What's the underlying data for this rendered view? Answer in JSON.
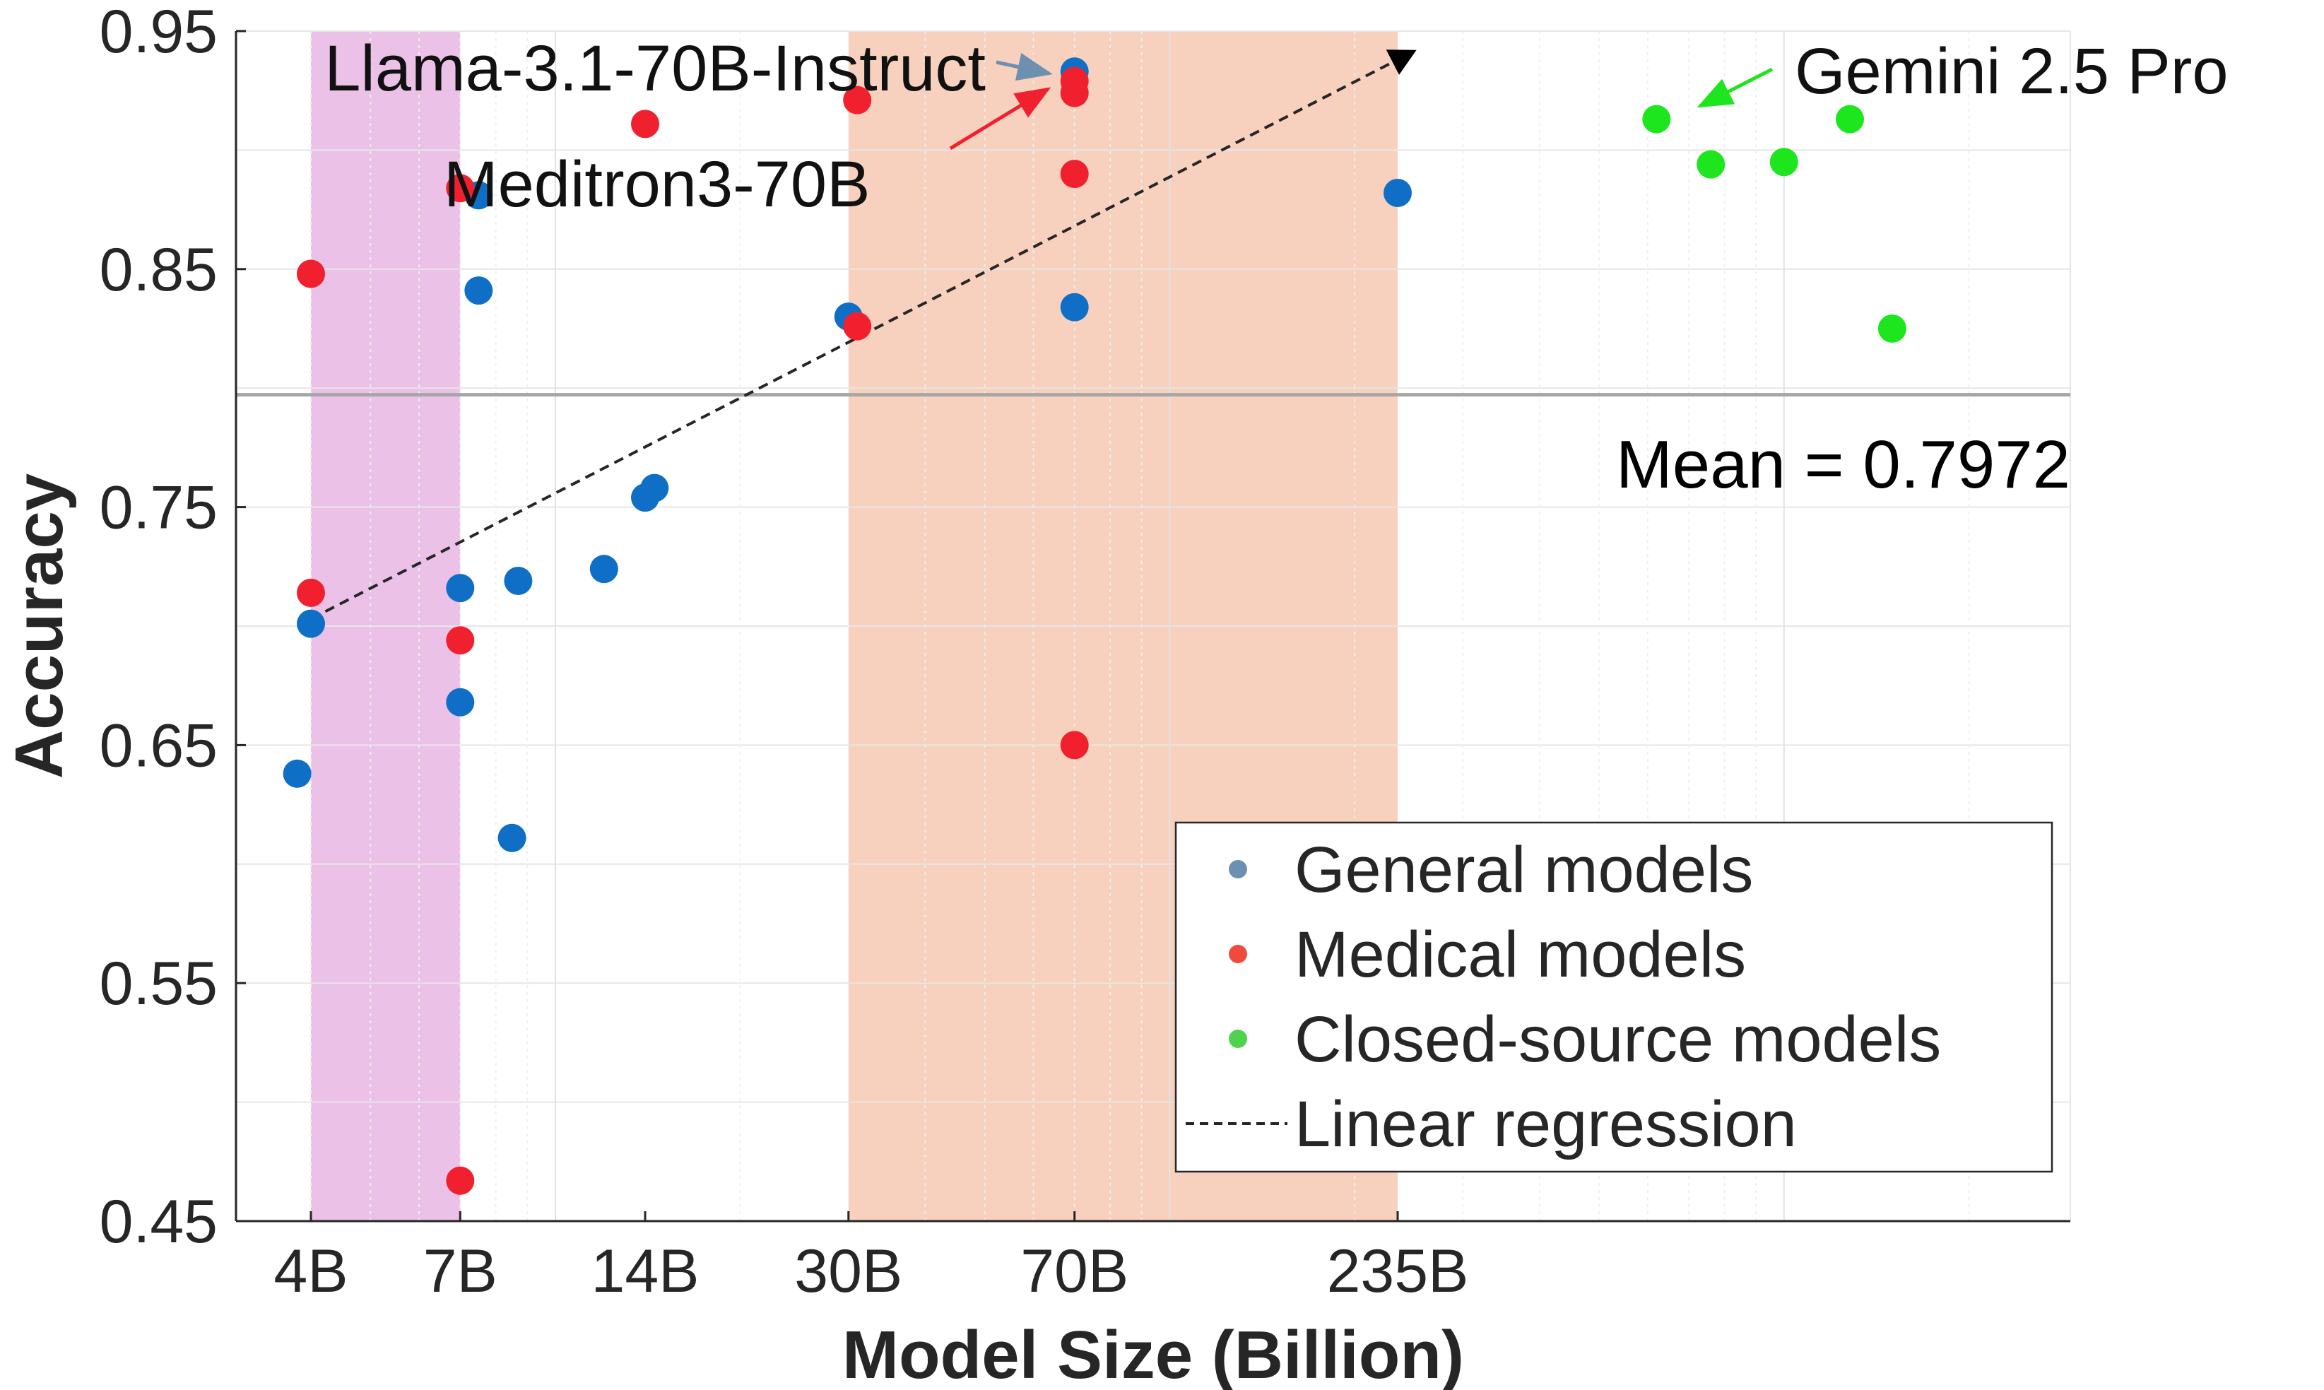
{
  "chart_data": {
    "type": "scatter",
    "title": "",
    "xlabel": "Model Size (Billion)",
    "ylabel": "Accuracy",
    "xscale": "log",
    "ylim": [
      0.45,
      0.95
    ],
    "yticks": [
      {
        "value": 0.45,
        "label": "0.45"
      },
      {
        "value": 0.55,
        "label": "0.55"
      },
      {
        "value": 0.65,
        "label": "0.65"
      },
      {
        "value": 0.75,
        "label": "0.75"
      },
      {
        "value": 0.85,
        "label": "0.85"
      },
      {
        "value": 0.95,
        "label": "0.95"
      }
    ],
    "xticks": [
      {
        "value": 4,
        "label": "4B"
      },
      {
        "value": 7,
        "label": "7B"
      },
      {
        "value": 14,
        "label": "14B"
      },
      {
        "value": 30,
        "label": "30B"
      },
      {
        "value": 70,
        "label": "70B"
      },
      {
        "value": 235,
        "label": "235B"
      }
    ],
    "grid": true,
    "shaded_regions": [
      {
        "x_start": 4,
        "x_end": 7,
        "color": "#e0a0dc"
      },
      {
        "x_start": 30,
        "x_end": 235,
        "color": "#f2b99b"
      }
    ],
    "mean_line": {
      "value": 0.7972,
      "label": "Mean = 0.7972",
      "color": "#a6a6a6"
    },
    "regression": {
      "x_start": 4,
      "y_start": 0.703,
      "x_end": 235,
      "y_end": 0.938,
      "label": "Linear regression"
    },
    "series": [
      {
        "name": "General models",
        "color": "#0f6fc6",
        "legend_color": "#6d8fb0",
        "points": [
          {
            "x": 3.8,
            "y": 0.638
          },
          {
            "x": 4,
            "y": 0.701
          },
          {
            "x": 7,
            "y": 0.716
          },
          {
            "x": 7,
            "y": 0.668
          },
          {
            "x": 7.5,
            "y": 0.881
          },
          {
            "x": 7.5,
            "y": 0.841
          },
          {
            "x": 8.5,
            "y": 0.611
          },
          {
            "x": 8.7,
            "y": 0.719
          },
          {
            "x": 12,
            "y": 0.724
          },
          {
            "x": 14,
            "y": 0.754
          },
          {
            "x": 14.5,
            "y": 0.758
          },
          {
            "x": 30,
            "y": 0.83
          },
          {
            "x": 70,
            "y": 0.834
          },
          {
            "x": 70,
            "y": 0.933
          },
          {
            "x": 235,
            "y": 0.882
          }
        ]
      },
      {
        "name": "Medical models",
        "color": "#f0202e",
        "legend_color": "#ef4a3a",
        "points": [
          {
            "x": 4,
            "y": 0.848
          },
          {
            "x": 4,
            "y": 0.714
          },
          {
            "x": 7,
            "y": 0.884
          },
          {
            "x": 7,
            "y": 0.694
          },
          {
            "x": 7,
            "y": 0.467
          },
          {
            "x": 14,
            "y": 0.911
          },
          {
            "x": 31,
            "y": 0.921
          },
          {
            "x": 31,
            "y": 0.826
          },
          {
            "x": 70,
            "y": 0.929
          },
          {
            "x": 70,
            "y": 0.924
          },
          {
            "x": 70,
            "y": 0.89
          },
          {
            "x": 70,
            "y": 0.65
          }
        ]
      },
      {
        "name": "Closed-source models",
        "color": "#1ee61e",
        "legend_color": "#4fd24f",
        "points": [
          {
            "x": 620,
            "y": 0.913
          },
          {
            "x": 760,
            "y": 0.894
          },
          {
            "x": 1000,
            "y": 0.895
          },
          {
            "x": 1280,
            "y": 0.913
          },
          {
            "x": 1500,
            "y": 0.825
          }
        ]
      }
    ],
    "annotations": [
      {
        "text": "Llama-3.1-70B-Instruct",
        "target_series": "General models",
        "color": "#6d8fb0"
      },
      {
        "text": "Meditron3-70B",
        "target_series": "Medical models",
        "color": "#f0202e"
      },
      {
        "text": "Gemini 2.5 Pro",
        "target_series": "Closed-source models",
        "color": "#1ee61e"
      }
    ],
    "legend": {
      "position": "bottom-right",
      "entries": [
        "General models",
        "Medical models",
        "Closed-source models",
        "Linear regression"
      ]
    }
  }
}
